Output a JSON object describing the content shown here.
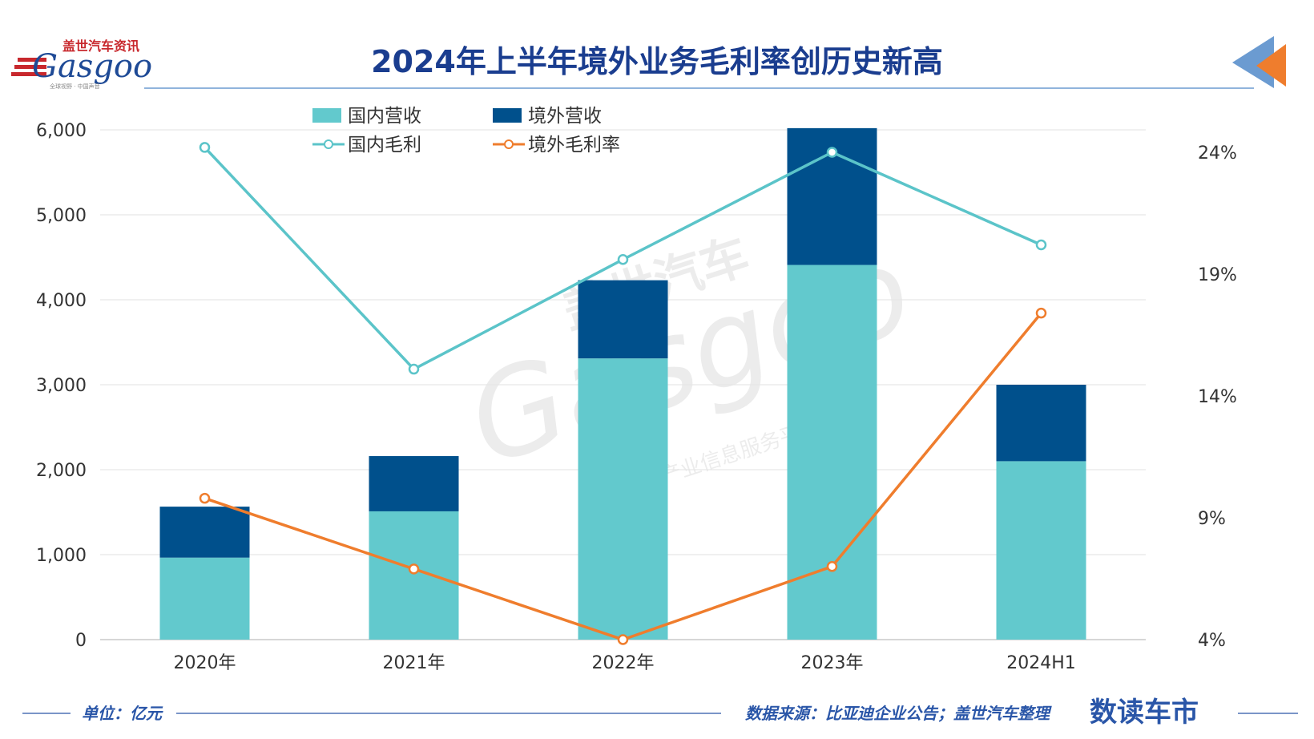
{
  "header": {
    "title": "2024年上半年境外业务毛利率创历史新高",
    "logo_cn": "盖世汽车资讯",
    "logo_en": "Gasgoo",
    "logo_sub": "全球视野 · 中国声音"
  },
  "watermark": {
    "cn": "盖世汽车",
    "en": "Gasgoo",
    "sub": "汽车产业信息服务平台"
  },
  "footer": {
    "unit": "单位：亿元",
    "source": "数据来源：比亚迪企业公告；盖世汽车整理",
    "brand": "数读车市"
  },
  "colors": {
    "domestic_revenue": "#62c9cd",
    "overseas_revenue": "#00508c",
    "domestic_margin": "#5bc4c9",
    "overseas_margin": "#ef7d2d",
    "title": "#1a3d8f",
    "accent_blue": "#6b9bd1",
    "accent_orange": "#ef7d2d"
  },
  "chart_data": {
    "type": "bar",
    "stacked": true,
    "categories": [
      "2020年",
      "2021年",
      "2022年",
      "2023年",
      "2024H1"
    ],
    "y_left": {
      "min": 0,
      "max": 6000,
      "ticks": [
        "0",
        "1,000",
        "2,000",
        "3,000",
        "4,000",
        "5,000",
        "6,000"
      ],
      "tick_values": [
        0,
        1000,
        2000,
        3000,
        4000,
        5000,
        6000
      ]
    },
    "y_right": {
      "min": 4,
      "max": 24,
      "ticks": [
        "4%",
        "9%",
        "14%",
        "19%",
        "24%"
      ],
      "tick_values": [
        4,
        9,
        14,
        19,
        24
      ]
    },
    "grid": true,
    "legend_position": "top-left",
    "series": [
      {
        "name": "国内营收",
        "type": "bar",
        "axis": "left",
        "values": [
          965,
          1510,
          3310,
          4410,
          2100
        ]
      },
      {
        "name": "境外营收",
        "type": "bar",
        "axis": "left",
        "values": [
          600,
          650,
          920,
          1610,
          900
        ]
      },
      {
        "name": "国内毛利",
        "type": "line",
        "axis": "right",
        "values": [
          24.2,
          15.1,
          19.6,
          24.0,
          20.2
        ]
      },
      {
        "name": "境外毛利率",
        "type": "line",
        "axis": "right",
        "values": [
          9.8,
          6.9,
          4.0,
          7.0,
          17.4
        ]
      }
    ]
  }
}
